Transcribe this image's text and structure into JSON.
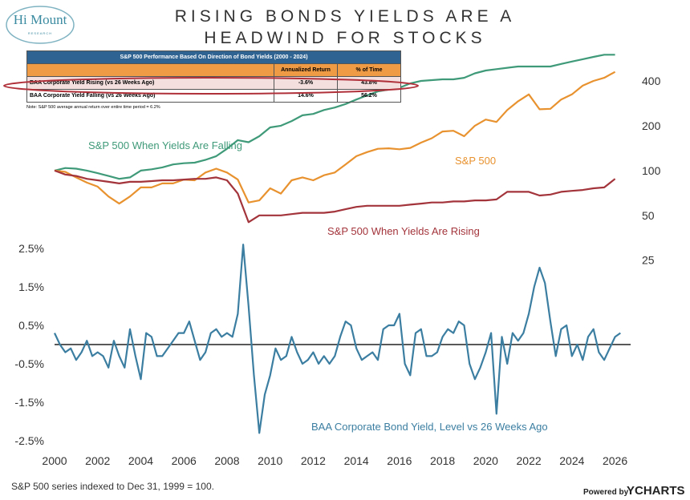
{
  "header": {
    "logo": "Hi Mount",
    "logo_sub": "RESEARCH",
    "title_lines": [
      "RISING BONDS YIELDS ARE A",
      "HEADWIND FOR STOCKS"
    ]
  },
  "table": {
    "title": "S&P 500 Performance Based On Direction of Bond Yields (2000 - 2024)",
    "columns": [
      "Annualized Return",
      "% of Time"
    ],
    "rows": [
      [
        "BAA Corporate Yield Rising (vs 26 Weeks Ago)",
        "-3.6%",
        "43.8%"
      ],
      [
        "BAA Corporate Yield Falling (vs 26 Weeks Ago)",
        "14.6%",
        "56.2%"
      ]
    ],
    "note": "Note: S&P 500 average annual return over entire time period = 6.2%"
  },
  "footer": {
    "note": "S&P 500 series indexed to Dec 31, 1999 = 100.",
    "powered": "Powered by",
    "brand": "YCHARTS"
  },
  "chart_data": [
    {
      "type": "line",
      "log_scale": true,
      "xlim": [
        2000,
        2026.5
      ],
      "ylim": [
        24,
        660
      ],
      "yticks": [
        25,
        50,
        100,
        200,
        400
      ],
      "x": [
        2000,
        2000.5,
        2001,
        2001.5,
        2002,
        2002.5,
        2003,
        2003.5,
        2004,
        2004.5,
        2005,
        2005.5,
        2006,
        2006.5,
        2007,
        2007.5,
        2008,
        2008.5,
        2009,
        2009.5,
        2010,
        2010.5,
        2011,
        2011.5,
        2012,
        2012.5,
        2013,
        2013.5,
        2014,
        2014.5,
        2015,
        2015.5,
        2016,
        2016.5,
        2017,
        2017.5,
        2018,
        2018.5,
        2019,
        2019.5,
        2020,
        2020.5,
        2021,
        2021.5,
        2022,
        2022.5,
        2023,
        2023.5,
        2024,
        2024.5,
        2025,
        2025.5,
        2026
      ],
      "series": [
        {
          "name": "S&P 500 When Yields Are Falling",
          "color": "#3f9a79",
          "values": [
            100,
            104,
            103,
            100,
            96,
            92,
            88,
            90,
            100,
            102,
            105,
            110,
            112,
            113,
            118,
            125,
            140,
            160,
            155,
            170,
            195,
            200,
            215,
            235,
            240,
            255,
            265,
            280,
            300,
            320,
            340,
            350,
            360,
            385,
            400,
            405,
            410,
            410,
            420,
            450,
            470,
            480,
            490,
            500,
            500,
            500,
            500,
            520,
            540,
            560,
            580,
            600,
            600
          ]
        },
        {
          "name": "S&P 500",
          "color": "#e8922f",
          "values": [
            100,
            98,
            90,
            83,
            78,
            67,
            60,
            67,
            77,
            77,
            82,
            82,
            87,
            86,
            97,
            103,
            97,
            87,
            61,
            63,
            76,
            70,
            86,
            90,
            86,
            93,
            97,
            110,
            125,
            133,
            140,
            141,
            139,
            142,
            154,
            165,
            183,
            185,
            170,
            200,
            220,
            212,
            255,
            292,
            325,
            258,
            260,
            300,
            325,
            372,
            400,
            420,
            460
          ]
        },
        {
          "name": "S&P 500 When Yields Are Rising",
          "color": "#a3343b",
          "values": [
            100,
            94,
            92,
            88,
            86,
            84,
            82,
            84,
            84,
            85,
            86,
            86,
            87,
            88,
            88,
            90,
            86,
            70,
            45,
            50,
            50,
            50,
            51,
            52,
            52,
            52,
            53,
            55,
            57,
            58,
            58,
            58,
            58,
            59,
            60,
            61,
            61,
            62,
            62,
            63,
            63,
            64,
            72,
            72,
            72,
            68,
            69,
            72,
            73,
            74,
            76,
            77,
            88
          ]
        }
      ]
    },
    {
      "type": "line",
      "log_scale": false,
      "xlim": [
        2000,
        2026.5
      ],
      "ylim": [
        -2.6,
        2.8
      ],
      "xticks": [
        2000,
        2002,
        2004,
        2006,
        2008,
        2010,
        2012,
        2014,
        2016,
        2018,
        2020,
        2022,
        2024,
        2026
      ],
      "yticks": [
        {
          "value": 2.5,
          "label": "2.5%"
        },
        {
          "value": 1.5,
          "label": "1.5%"
        },
        {
          "value": 0.5,
          "label": "0.5%"
        },
        {
          "value": -0.5,
          "label": "-0.5%"
        },
        {
          "value": -1.5,
          "label": "-1.5%"
        },
        {
          "value": -2.5,
          "label": "-2.5%"
        }
      ],
      "x": [
        2000,
        2000.25,
        2000.5,
        2000.75,
        2001,
        2001.25,
        2001.5,
        2001.75,
        2002,
        2002.25,
        2002.5,
        2002.75,
        2003,
        2003.25,
        2003.5,
        2003.75,
        2004,
        2004.25,
        2004.5,
        2004.75,
        2005,
        2005.25,
        2005.5,
        2005.75,
        2006,
        2006.25,
        2006.5,
        2006.75,
        2007,
        2007.25,
        2007.5,
        2007.75,
        2008,
        2008.25,
        2008.5,
        2008.75,
        2009,
        2009.25,
        2009.5,
        2009.75,
        2010,
        2010.25,
        2010.5,
        2010.75,
        2011,
        2011.25,
        2011.5,
        2011.75,
        2012,
        2012.25,
        2012.5,
        2012.75,
        2013,
        2013.25,
        2013.5,
        2013.75,
        2014,
        2014.25,
        2014.5,
        2014.75,
        2015,
        2015.25,
        2015.5,
        2015.75,
        2016,
        2016.25,
        2016.5,
        2016.75,
        2017,
        2017.25,
        2017.5,
        2017.75,
        2018,
        2018.25,
        2018.5,
        2018.75,
        2019,
        2019.25,
        2019.5,
        2019.75,
        2020,
        2020.25,
        2020.5,
        2020.75,
        2021,
        2021.25,
        2021.5,
        2021.75,
        2022,
        2022.25,
        2022.5,
        2022.75,
        2023,
        2023.25,
        2023.5,
        2023.75,
        2024,
        2024.25,
        2024.5,
        2024.75,
        2025,
        2025.25,
        2025.5,
        2025.75,
        2026,
        2026.25
      ],
      "series": [
        {
          "name": "BAA Corporate Bond Yield, Level vs 26 Weeks Ago",
          "color": "#3b7ea1",
          "values": [
            0.3,
            0.0,
            -0.2,
            -0.1,
            -0.4,
            -0.2,
            0.1,
            -0.3,
            -0.2,
            -0.3,
            -0.6,
            0.1,
            -0.3,
            -0.6,
            0.4,
            -0.3,
            -0.9,
            0.3,
            0.2,
            -0.3,
            -0.3,
            -0.1,
            0.1,
            0.3,
            0.3,
            0.6,
            0.1,
            -0.4,
            -0.2,
            0.3,
            0.4,
            0.2,
            0.3,
            0.2,
            0.8,
            2.6,
            1.0,
            -0.8,
            -2.3,
            -1.3,
            -0.8,
            -0.1,
            -0.4,
            -0.3,
            0.2,
            -0.2,
            -0.5,
            -0.4,
            -0.2,
            -0.5,
            -0.3,
            -0.5,
            -0.3,
            0.2,
            0.6,
            0.5,
            -0.1,
            -0.4,
            -0.3,
            -0.2,
            -0.4,
            0.4,
            0.5,
            0.5,
            0.8,
            -0.5,
            -0.8,
            0.3,
            0.4,
            -0.3,
            -0.3,
            -0.2,
            0.2,
            0.4,
            0.3,
            0.6,
            0.5,
            -0.5,
            -0.9,
            -0.6,
            -0.2,
            0.3,
            -1.8,
            0.2,
            -0.5,
            0.3,
            0.1,
            0.3,
            0.8,
            1.5,
            2.0,
            1.6,
            0.6,
            -0.3,
            0.4,
            0.5,
            -0.3,
            0.0,
            -0.4,
            0.2,
            0.4,
            -0.2,
            -0.4,
            -0.1,
            0.2,
            0.3
          ]
        }
      ]
    }
  ]
}
